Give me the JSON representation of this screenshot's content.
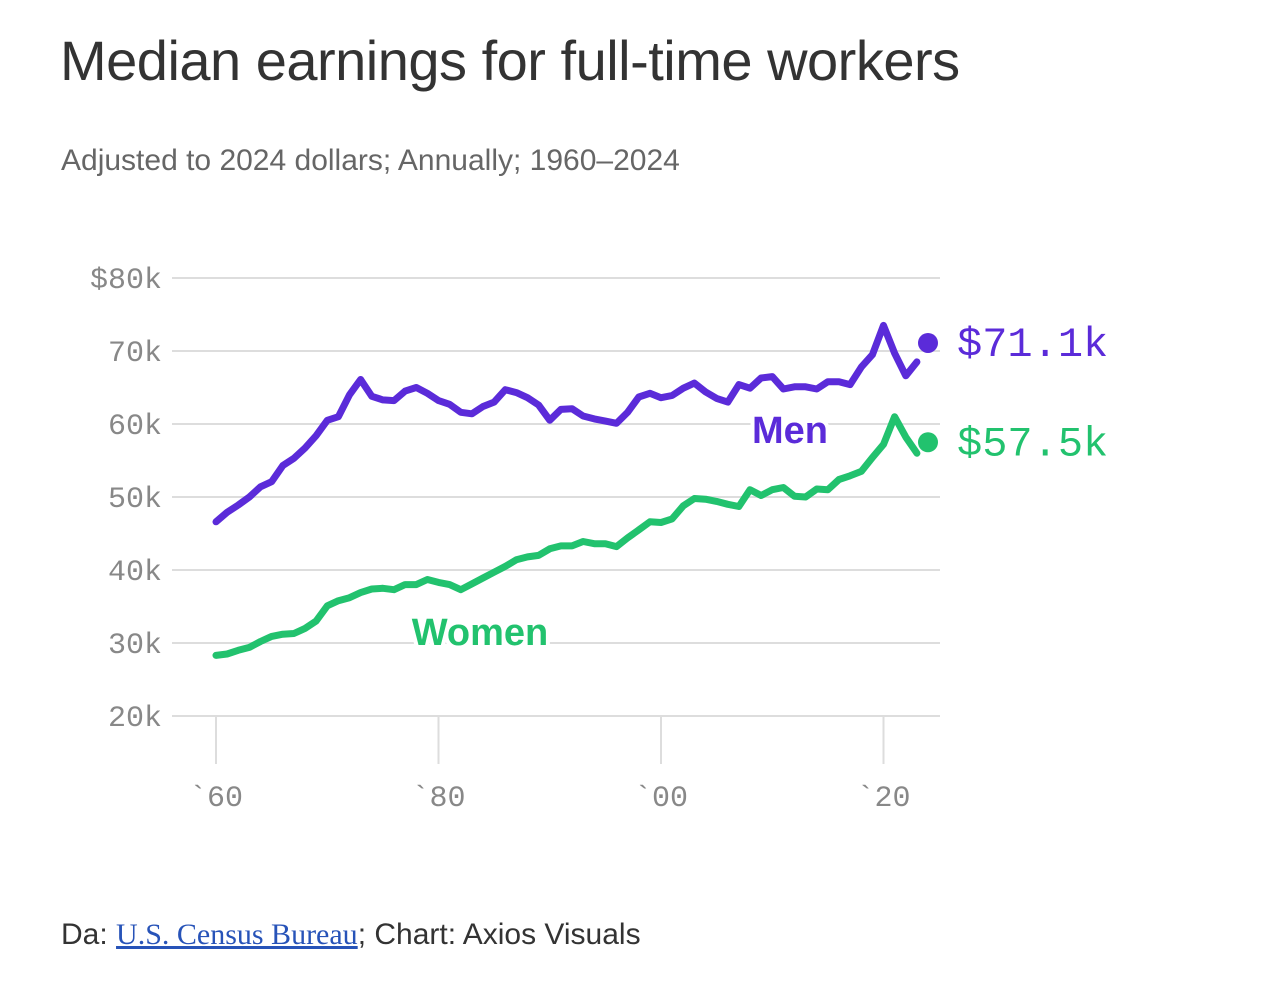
{
  "title": "Median earnings for full-time workers",
  "subtitle": "Adjusted to 2024 dollars; Annually; 1960–2024",
  "source": {
    "prefix": "Da: ",
    "link_text": "U.S. Census Bureau",
    "suffix": "; Chart: Axios Visuals"
  },
  "colors": {
    "men": "#5b2bd9",
    "women": "#22c26e",
    "grid": "#dddddd",
    "tick_text": "#888888"
  },
  "chart_data": {
    "type": "line",
    "ylim": [
      20000,
      80000
    ],
    "xlim": [
      1960,
      2024
    ],
    "grid": true,
    "ytick_labels": [
      {
        "value": 80000,
        "label": "$80k"
      },
      {
        "value": 70000,
        "label": "70k"
      },
      {
        "value": 60000,
        "label": "60k"
      },
      {
        "value": 50000,
        "label": "50k"
      },
      {
        "value": 40000,
        "label": "40k"
      },
      {
        "value": 30000,
        "label": "30k"
      },
      {
        "value": 20000,
        "label": "20k"
      }
    ],
    "xtick_labels": [
      {
        "value": 1960,
        "label": "`60"
      },
      {
        "value": 1980,
        "label": "`80"
      },
      {
        "value": 2000,
        "label": "`00"
      },
      {
        "value": 2020,
        "label": "`20"
      }
    ],
    "series": [
      {
        "name": "Men",
        "key": "men",
        "end_label": "$71.1k",
        "x": [
          1960,
          1961,
          1962,
          1963,
          1964,
          1965,
          1966,
          1967,
          1968,
          1969,
          1970,
          1971,
          1972,
          1973,
          1974,
          1975,
          1976,
          1977,
          1978,
          1979,
          1980,
          1981,
          1982,
          1983,
          1984,
          1985,
          1986,
          1987,
          1988,
          1989,
          1990,
          1991,
          1992,
          1993,
          1994,
          1995,
          1996,
          1997,
          1998,
          1999,
          2000,
          2001,
          2002,
          2003,
          2004,
          2005,
          2006,
          2007,
          2008,
          2009,
          2010,
          2011,
          2012,
          2013,
          2014,
          2015,
          2016,
          2017,
          2018,
          2019,
          2020,
          2021,
          2022,
          2023,
          2024
        ],
        "values": [
          46600,
          47900,
          48900,
          50000,
          51400,
          52100,
          54300,
          55300,
          56700,
          58400,
          60500,
          61000,
          64000,
          66100,
          63800,
          63300,
          63200,
          64500,
          65000,
          64200,
          63200,
          62700,
          61600,
          61400,
          62400,
          63000,
          64700,
          64300,
          63600,
          62600,
          60500,
          62000,
          62100,
          61100,
          60700,
          60400,
          60100,
          61600,
          63700,
          64200,
          63600,
          63900,
          64900,
          65600,
          64400,
          63500,
          63000,
          65400,
          64900,
          66300,
          66500,
          64800,
          65100,
          65100,
          64800,
          65800,
          65800,
          65400,
          67800,
          69500,
          73500,
          69700,
          66600,
          68500,
          71100
        ]
      },
      {
        "name": "Women",
        "key": "women",
        "end_label": "$57.5k",
        "x": [
          1960,
          1961,
          1962,
          1963,
          1964,
          1965,
          1966,
          1967,
          1968,
          1969,
          1970,
          1971,
          1972,
          1973,
          1974,
          1975,
          1976,
          1977,
          1978,
          1979,
          1980,
          1981,
          1982,
          1983,
          1984,
          1985,
          1986,
          1987,
          1988,
          1989,
          1990,
          1991,
          1992,
          1993,
          1994,
          1995,
          1996,
          1997,
          1998,
          1999,
          2000,
          2001,
          2002,
          2003,
          2004,
          2005,
          2006,
          2007,
          2008,
          2009,
          2010,
          2011,
          2012,
          2013,
          2014,
          2015,
          2016,
          2017,
          2018,
          2019,
          2020,
          2021,
          2022,
          2023,
          2024
        ],
        "values": [
          28300,
          28500,
          29000,
          29400,
          30200,
          30900,
          31200,
          31300,
          32000,
          33000,
          35100,
          35800,
          36200,
          36900,
          37400,
          37500,
          37300,
          38000,
          38000,
          38700,
          38300,
          38000,
          37300,
          38100,
          38900,
          39700,
          40500,
          41400,
          41800,
          42000,
          42900,
          43300,
          43300,
          43900,
          43600,
          43600,
          43200,
          44400,
          45500,
          46600,
          46500,
          47000,
          48800,
          49800,
          49700,
          49400,
          49000,
          48700,
          51000,
          50200,
          51000,
          51300,
          50100,
          50000,
          51100,
          51000,
          52400,
          52900,
          53500,
          55400,
          57200,
          61000,
          58200,
          56000,
          57500
        ]
      }
    ],
    "annotations": [
      {
        "text": "Men",
        "series": "men"
      },
      {
        "text": "Women",
        "series": "women"
      }
    ]
  }
}
